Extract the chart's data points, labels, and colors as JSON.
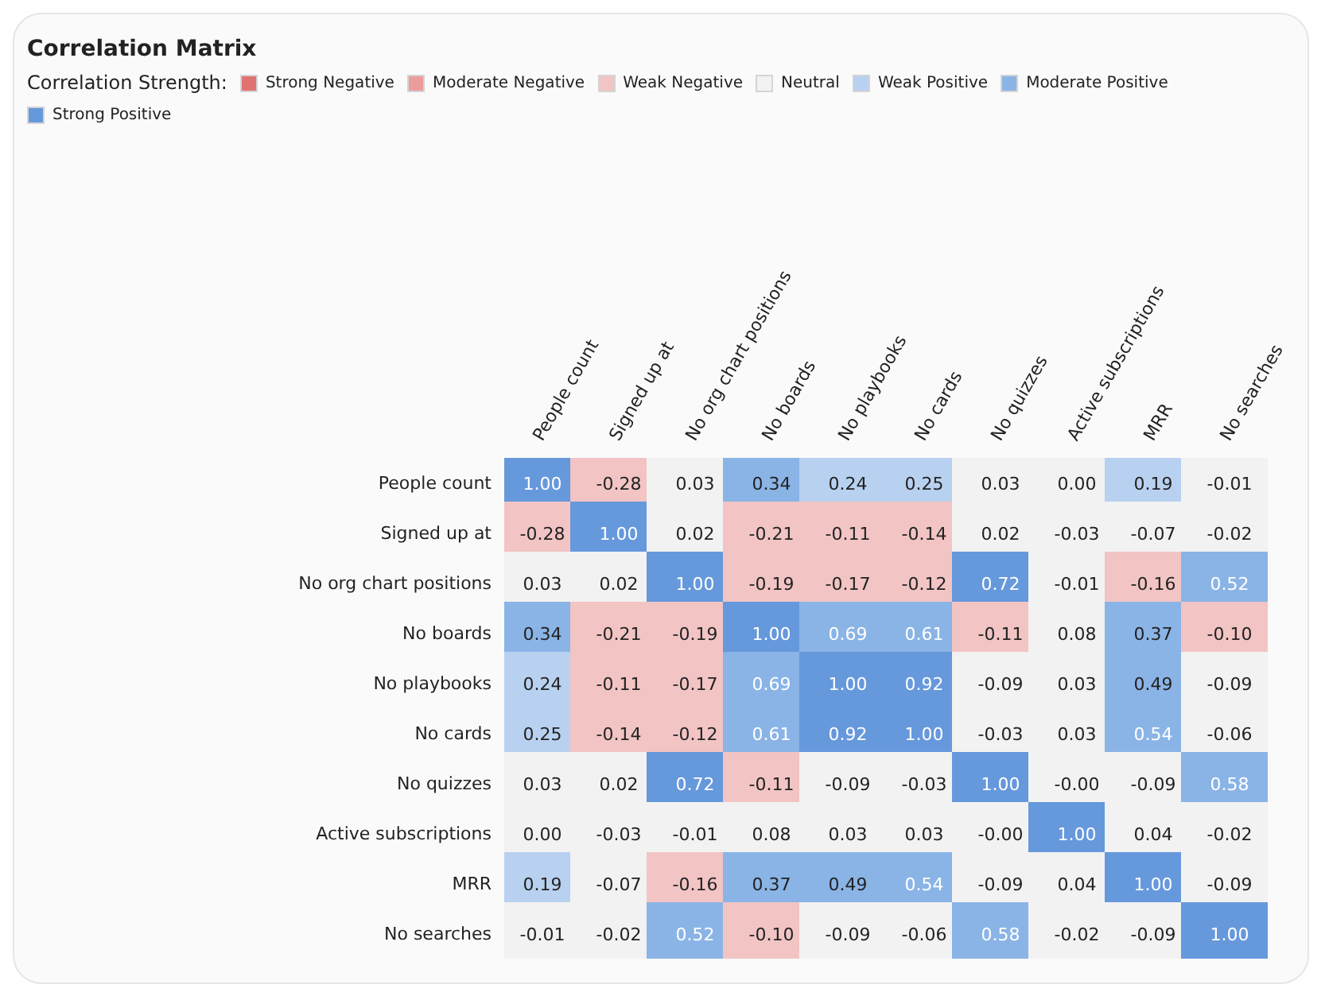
{
  "chart_data": {
    "type": "heatmap",
    "title": "Correlation Matrix",
    "legend_title": "Correlation Strength:",
    "categories": [
      "People count",
      "Signed up at",
      "No org chart positions",
      "No boards",
      "No playbooks",
      "No cards",
      "No quizzes",
      "Active subscriptions",
      "MRR",
      "No searches"
    ],
    "y_categories": [
      "People count",
      "Signed up at",
      "No org chart positions",
      "No boards",
      "No playbooks",
      "No cards",
      "No quizzes",
      "Active subscriptions",
      "MRR",
      "No searches"
    ],
    "annotations": [
      "Strong Negative",
      "Moderate Negative",
      "Weak Negative",
      "Neutral",
      "Weak Positive",
      "Moderate Positive",
      "Strong Positive"
    ],
    "colors": [
      "#e07272",
      "#eb9c9c",
      "#f2c4c4",
      "#f2f2f2",
      "#b9d1f0",
      "#8ab4e6",
      "#6698dc"
    ],
    "cells": [
      [
        1.0,
        -0.28,
        0.03,
        0.34,
        0.24,
        0.25,
        0.03,
        0.0,
        0.19,
        -0.01
      ],
      [
        -0.28,
        1.0,
        0.02,
        -0.21,
        -0.11,
        -0.14,
        0.02,
        -0.03,
        -0.07,
        -0.02
      ],
      [
        0.03,
        0.02,
        1.0,
        -0.19,
        -0.17,
        -0.12,
        0.72,
        -0.01,
        -0.16,
        0.52
      ],
      [
        0.34,
        -0.21,
        -0.19,
        1.0,
        0.69,
        0.61,
        -0.11,
        0.08,
        0.37,
        -0.1
      ],
      [
        0.24,
        -0.11,
        -0.17,
        0.69,
        1.0,
        0.92,
        -0.09,
        0.03,
        0.49,
        -0.09
      ],
      [
        0.25,
        -0.14,
        -0.12,
        0.61,
        0.92,
        1.0,
        -0.03,
        0.03,
        0.54,
        -0.06
      ],
      [
        0.03,
        0.02,
        0.72,
        -0.11,
        -0.09,
        -0.03,
        1.0,
        -0.0,
        -0.09,
        0.58
      ],
      [
        0.0,
        -0.03,
        -0.01,
        0.08,
        0.03,
        0.03,
        -0.0,
        1.0,
        0.04,
        -0.02
      ],
      [
        0.19,
        -0.07,
        -0.16,
        0.37,
        0.49,
        0.54,
        -0.09,
        0.04,
        1.0,
        -0.09
      ],
      [
        -0.01,
        -0.02,
        0.52,
        -0.1,
        -0.09,
        -0.06,
        0.58,
        -0.02,
        -0.09,
        1.0
      ]
    ],
    "cell_labels": [
      [
        "1.00",
        "-0.28",
        "0.03",
        "0.34",
        "0.24",
        "0.25",
        "0.03",
        "0.00",
        "0.19",
        "-0.01"
      ],
      [
        "-0.28",
        "1.00",
        "0.02",
        "-0.21",
        "-0.11",
        "-0.14",
        "0.02",
        "-0.03",
        "-0.07",
        "-0.02"
      ],
      [
        "0.03",
        "0.02",
        "1.00",
        "-0.19",
        "-0.17",
        "-0.12",
        "0.72",
        "-0.01",
        "-0.16",
        "0.52"
      ],
      [
        "0.34",
        "-0.21",
        "-0.19",
        "1.00",
        "0.69",
        "0.61",
        "-0.11",
        "0.08",
        "0.37",
        "-0.10"
      ],
      [
        "0.24",
        "-0.11",
        "-0.17",
        "0.69",
        "1.00",
        "0.92",
        "-0.09",
        "0.03",
        "0.49",
        "-0.09"
      ],
      [
        "0.25",
        "-0.14",
        "-0.12",
        "0.61",
        "0.92",
        "1.00",
        "-0.03",
        "0.03",
        "0.54",
        "-0.06"
      ],
      [
        "0.03",
        "0.02",
        "0.72",
        "-0.11",
        "-0.09",
        "-0.03",
        "1.00",
        "-0.00",
        "-0.09",
        "0.58"
      ],
      [
        "0.00",
        "-0.03",
        "-0.01",
        "0.08",
        "0.03",
        "0.03",
        "-0.00",
        "1.00",
        "0.04",
        "-0.02"
      ],
      [
        "0.19",
        "-0.07",
        "-0.16",
        "0.37",
        "0.49",
        "0.54",
        "-0.09",
        "0.04",
        "1.00",
        "-0.09"
      ],
      [
        "-0.01",
        "-0.02",
        "0.52",
        "-0.10",
        "-0.09",
        "-0.06",
        "0.58",
        "-0.02",
        "-0.09",
        "1.00"
      ]
    ]
  }
}
